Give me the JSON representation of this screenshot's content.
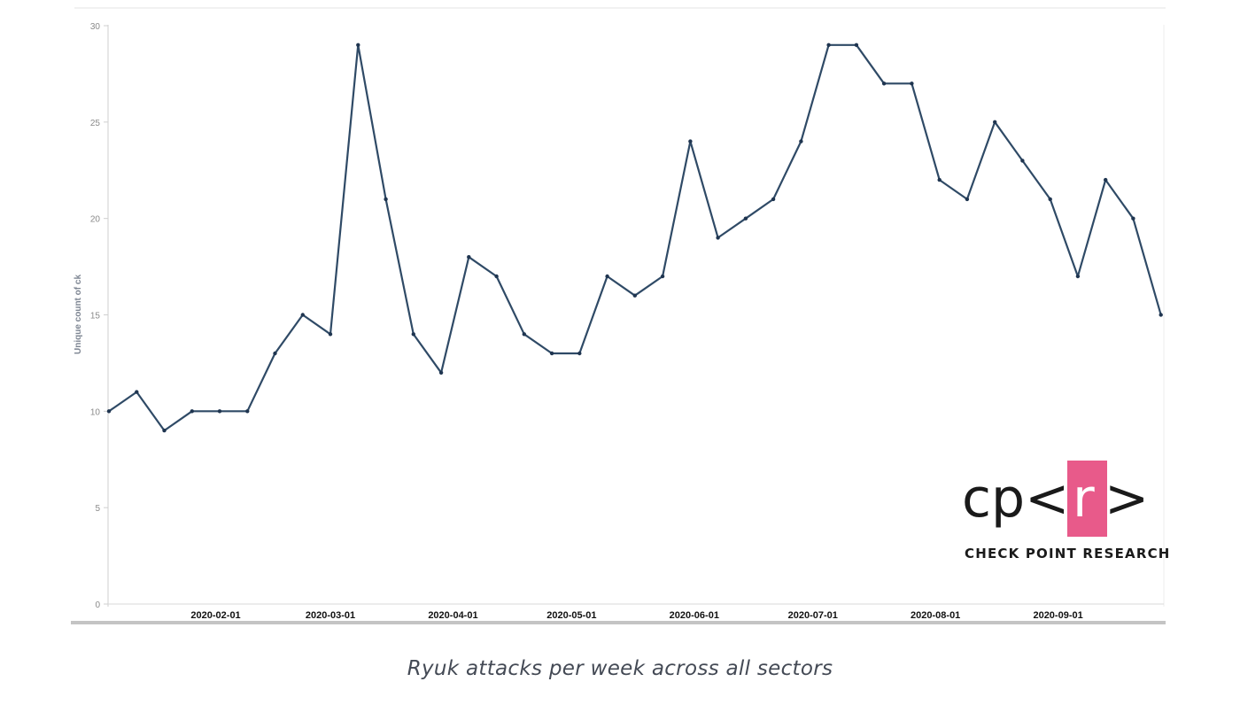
{
  "colors": {
    "line": "#2f4a66",
    "axis": "#cfcfcf",
    "baseline": "#c4c4c4",
    "logo_accent": "#e85a8a"
  },
  "caption": "Ryuk attacks per week across all sectors",
  "logo": {
    "mark_left": "cp<",
    "mark_highlight": "r",
    "mark_right": ">",
    "subtitle": "CHECK POINT RESEARCH"
  },
  "chart_data": {
    "type": "line",
    "title": "",
    "xlabel": "",
    "ylabel": "Unique count of ck",
    "ylim": [
      0,
      30
    ],
    "yticks": [
      0,
      5,
      10,
      15,
      20,
      25,
      30
    ],
    "x_tick_labels": [
      "2020-02-01",
      "2020-03-01",
      "2020-04-01",
      "2020-05-01",
      "2020-06-01",
      "2020-07-01",
      "2020-08-01",
      "2020-09-01"
    ],
    "grid": false,
    "series": [
      {
        "x": [
          "2020-01-05",
          "2020-01-12",
          "2020-01-19",
          "2020-01-26",
          "2020-02-02",
          "2020-02-09",
          "2020-02-16",
          "2020-02-23",
          "2020-03-01",
          "2020-03-08",
          "2020-03-15",
          "2020-03-22",
          "2020-03-29",
          "2020-04-05",
          "2020-04-12",
          "2020-04-19",
          "2020-04-26",
          "2020-05-03",
          "2020-05-10",
          "2020-05-17",
          "2020-05-24",
          "2020-05-31",
          "2020-06-07",
          "2020-06-14",
          "2020-06-21",
          "2020-06-28",
          "2020-07-05",
          "2020-07-12",
          "2020-07-19",
          "2020-07-26",
          "2020-08-02",
          "2020-08-09",
          "2020-08-16",
          "2020-08-23",
          "2020-08-30",
          "2020-09-06",
          "2020-09-13",
          "2020-09-20",
          "2020-09-27"
        ],
        "values": [
          10,
          11,
          9,
          10,
          10,
          10,
          13,
          15,
          14,
          29,
          21,
          14,
          12,
          18,
          17,
          14,
          13,
          13,
          17,
          16,
          17,
          24,
          19,
          20,
          21,
          24,
          29,
          29,
          27,
          27,
          22,
          21,
          25,
          23,
          21,
          17,
          22,
          20,
          15
        ]
      }
    ]
  }
}
